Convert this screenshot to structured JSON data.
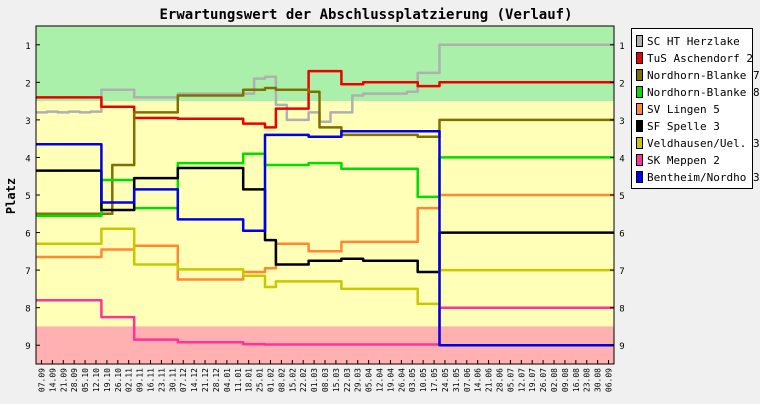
{
  "chart_data": {
    "type": "line",
    "title": "Erwartungswert der Abschlussplatzierung (Verlauf)",
    "ylabel": "Platz",
    "xlabel": "",
    "ylim": [
      0.5,
      9.5
    ],
    "yticks": [
      "1",
      "2",
      "3",
      "4",
      "5",
      "6",
      "7",
      "8",
      "9"
    ],
    "grid": "none",
    "legend_position": "right",
    "zones": [
      {
        "from": 0.5,
        "to": 2.5,
        "color": "#aaf0aa"
      },
      {
        "from": 2.5,
        "to": 8.5,
        "color": "#ffffb8"
      },
      {
        "from": 8.5,
        "to": 9.5,
        "color": "#ffb0b0"
      }
    ],
    "x": [
      "07.09",
      "14.09",
      "21.09",
      "28.09",
      "05.10",
      "12.10",
      "19.10",
      "26.10",
      "02.11",
      "09.11",
      "16.11",
      "23.11",
      "30.11",
      "07.12",
      "14.12",
      "21.12",
      "28.12",
      "04.01",
      "11.01",
      "18.01",
      "25.01",
      "01.02",
      "08.02",
      "15.02",
      "22.02",
      "01.03",
      "08.03",
      "15.03",
      "22.03",
      "29.03",
      "05.04",
      "12.04",
      "19.04",
      "26.04",
      "03.05",
      "10.05",
      "17.05",
      "24.05",
      "31.05",
      "07.06",
      "14.06",
      "21.06",
      "28.06",
      "05.07",
      "12.07",
      "19.07",
      "26.07",
      "02.08",
      "09.08",
      "16.08",
      "23.08",
      "30.08",
      "06.09"
    ],
    "series": [
      {
        "name": "SC HT Herzlake",
        "color": "#b0b0b0",
        "values": [
          2.8,
          2.78,
          2.8,
          2.78,
          2.8,
          2.78,
          2.2,
          2.2,
          2.2,
          2.4,
          2.4,
          2.4,
          2.4,
          2.3,
          2.3,
          2.3,
          2.3,
          2.3,
          2.3,
          2.3,
          1.9,
          1.85,
          2.6,
          3.0,
          3.0,
          2.8,
          3.05,
          2.8,
          2.8,
          2.35,
          2.3,
          2.3,
          2.3,
          2.3,
          2.25,
          1.75,
          1.75,
          1.0,
          1.0,
          1.0,
          1.0,
          1.0,
          1.0,
          1.0,
          1.0,
          1.0,
          1.0,
          1.0,
          1.0,
          1.0,
          1.0,
          1.0,
          1.0
        ]
      },
      {
        "name": "TuS Aschendorf 2",
        "color": "#ee0000",
        "values": [
          2.4,
          2.4,
          2.4,
          2.4,
          2.4,
          2.4,
          2.65,
          2.65,
          2.65,
          2.95,
          2.95,
          2.95,
          2.95,
          2.97,
          2.97,
          2.97,
          2.97,
          2.97,
          2.97,
          3.1,
          3.1,
          3.2,
          2.7,
          2.7,
          2.7,
          1.7,
          1.7,
          1.7,
          2.05,
          2.05,
          2.0,
          2.0,
          2.0,
          2.0,
          2.0,
          2.1,
          2.1,
          2.0,
          2.0,
          2.0,
          2.0,
          2.0,
          2.0,
          2.0,
          2.0,
          2.0,
          2.0,
          2.0,
          2.0,
          2.0,
          2.0,
          2.0,
          2.0
        ]
      },
      {
        "name": "Nordhorn-Blanke 7",
        "color": "#807000",
        "values": [
          5.5,
          5.5,
          5.5,
          5.5,
          5.5,
          5.5,
          5.5,
          4.2,
          4.2,
          2.8,
          2.8,
          2.8,
          2.8,
          2.35,
          2.35,
          2.35,
          2.35,
          2.35,
          2.35,
          2.2,
          2.2,
          2.15,
          2.2,
          2.2,
          2.2,
          2.25,
          3.2,
          3.2,
          3.4,
          3.4,
          3.4,
          3.4,
          3.4,
          3.4,
          3.4,
          3.45,
          3.45,
          3.0,
          3.0,
          3.0,
          3.0,
          3.0,
          3.0,
          3.0,
          3.0,
          3.0,
          3.0,
          3.0,
          3.0,
          3.0,
          3.0,
          3.0,
          3.0
        ]
      },
      {
        "name": "Nordhorn-Blanke 8",
        "color": "#00dd00",
        "values": [
          5.55,
          5.55,
          5.55,
          5.55,
          5.55,
          5.55,
          4.6,
          4.6,
          4.6,
          5.35,
          5.35,
          5.35,
          5.35,
          4.15,
          4.15,
          4.15,
          4.15,
          4.15,
          4.15,
          3.9,
          3.9,
          4.2,
          4.2,
          4.2,
          4.2,
          4.15,
          4.15,
          4.15,
          4.3,
          4.3,
          4.3,
          4.3,
          4.3,
          4.3,
          4.3,
          5.05,
          5.05,
          4.0,
          4.0,
          4.0,
          4.0,
          4.0,
          4.0,
          4.0,
          4.0,
          4.0,
          4.0,
          4.0,
          4.0,
          4.0,
          4.0,
          4.0,
          4.0
        ]
      },
      {
        "name": "SV Lingen 5",
        "color": "#ff8833",
        "values": [
          6.65,
          6.65,
          6.65,
          6.65,
          6.65,
          6.65,
          6.45,
          6.45,
          6.45,
          6.35,
          6.35,
          6.35,
          6.35,
          7.25,
          7.25,
          7.25,
          7.25,
          7.25,
          7.25,
          7.05,
          7.05,
          6.95,
          6.3,
          6.3,
          6.3,
          6.5,
          6.5,
          6.5,
          6.25,
          6.25,
          6.25,
          6.25,
          6.25,
          6.25,
          6.25,
          5.35,
          5.35,
          5.0,
          5.0,
          5.0,
          5.0,
          5.0,
          5.0,
          5.0,
          5.0,
          5.0,
          5.0,
          5.0,
          5.0,
          5.0,
          5.0,
          5.0,
          5.0
        ]
      },
      {
        "name": "SF Spelle 3",
        "color": "#000000",
        "values": [
          4.35,
          4.35,
          4.35,
          4.35,
          4.35,
          4.35,
          5.4,
          5.4,
          5.4,
          4.55,
          4.55,
          4.55,
          4.55,
          4.28,
          4.28,
          4.28,
          4.28,
          4.28,
          4.28,
          4.85,
          4.85,
          6.2,
          6.85,
          6.85,
          6.85,
          6.75,
          6.75,
          6.75,
          6.7,
          6.7,
          6.75,
          6.75,
          6.75,
          6.75,
          6.75,
          7.05,
          7.05,
          6.0,
          6.0,
          6.0,
          6.0,
          6.0,
          6.0,
          6.0,
          6.0,
          6.0,
          6.0,
          6.0,
          6.0,
          6.0,
          6.0,
          6.0,
          6.0
        ]
      },
      {
        "name": "Veldhausen/Uel. 3",
        "color": "#c8c800",
        "values": [
          6.3,
          6.3,
          6.3,
          6.3,
          6.3,
          6.3,
          5.9,
          5.9,
          5.9,
          6.85,
          6.85,
          6.85,
          6.85,
          6.98,
          6.98,
          6.98,
          6.98,
          6.98,
          6.98,
          7.15,
          7.15,
          7.45,
          7.3,
          7.3,
          7.3,
          7.3,
          7.3,
          7.3,
          7.5,
          7.5,
          7.5,
          7.5,
          7.5,
          7.5,
          7.5,
          7.9,
          7.9,
          7.0,
          7.0,
          7.0,
          7.0,
          7.0,
          7.0,
          7.0,
          7.0,
          7.0,
          7.0,
          7.0,
          7.0,
          7.0,
          7.0,
          7.0,
          7.0
        ]
      },
      {
        "name": "SK Meppen 2",
        "color": "#ff3399",
        "values": [
          7.8,
          7.8,
          7.8,
          7.8,
          7.8,
          7.8,
          8.25,
          8.25,
          8.25,
          8.85,
          8.85,
          8.85,
          8.85,
          8.92,
          8.92,
          8.92,
          8.92,
          8.92,
          8.92,
          8.97,
          8.97,
          8.98,
          8.98,
          8.98,
          8.98,
          8.98,
          8.98,
          8.98,
          8.98,
          8.98,
          8.98,
          8.98,
          8.98,
          8.98,
          8.98,
          8.98,
          8.98,
          8.0,
          8.0,
          8.0,
          8.0,
          8.0,
          8.0,
          8.0,
          8.0,
          8.0,
          8.0,
          8.0,
          8.0,
          8.0,
          8.0,
          8.0,
          8.0
        ]
      },
      {
        "name": "Bentheim/Nordho 3",
        "color": "#0000ee",
        "values": [
          3.65,
          3.65,
          3.65,
          3.65,
          3.65,
          3.65,
          5.2,
          5.2,
          5.2,
          4.85,
          4.85,
          4.85,
          4.85,
          5.65,
          5.65,
          5.65,
          5.65,
          5.65,
          5.65,
          5.95,
          5.95,
          3.4,
          3.4,
          3.4,
          3.4,
          3.45,
          3.45,
          3.45,
          3.3,
          3.3,
          3.3,
          3.3,
          3.3,
          3.3,
          3.3,
          3.3,
          3.3,
          9.0,
          9.0,
          9.0,
          9.0,
          9.0,
          9.0,
          9.0,
          9.0,
          9.0,
          9.0,
          9.0,
          9.0,
          9.0,
          9.0,
          9.0,
          9.0
        ]
      }
    ]
  }
}
